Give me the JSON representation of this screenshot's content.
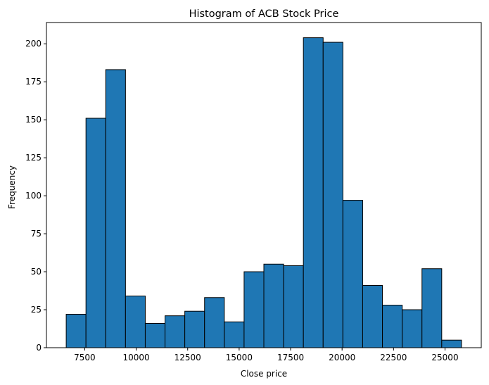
{
  "chart_data": {
    "type": "bar",
    "title": "Histogram of ACB Stock Price",
    "xlabel": "Close price",
    "ylabel": "Frequency",
    "bin_edges": [
      6600,
      7560,
      8520,
      9480,
      10440,
      11400,
      12360,
      13320,
      14280,
      15240,
      16200,
      17160,
      18120,
      19080,
      20040,
      21000,
      21960,
      22920,
      23880,
      24840,
      25800
    ],
    "values": [
      22,
      151,
      183,
      34,
      16,
      21,
      24,
      33,
      17,
      50,
      55,
      54,
      204,
      201,
      97,
      41,
      28,
      25,
      52,
      5
    ],
    "xlim": [
      5640,
      26760
    ],
    "ylim": [
      0,
      214
    ],
    "x_ticks": [
      7500,
      10000,
      12500,
      15000,
      17500,
      20000,
      22500,
      25000
    ],
    "y_ticks": [
      0,
      25,
      50,
      75,
      100,
      125,
      150,
      175,
      200
    ],
    "colors": {
      "bar_fill": "#1f77b4",
      "bar_edge": "#000000"
    },
    "grid": false,
    "legend": "none"
  }
}
